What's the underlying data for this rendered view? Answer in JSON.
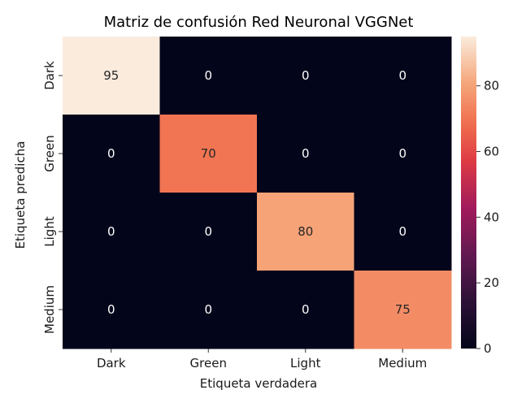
{
  "chart_data": {
    "type": "heatmap",
    "title": "Matriz de confusión Red Neuronal VGGNet",
    "xlabel": "Etiqueta verdadera",
    "ylabel": "Etiqueta predicha",
    "x_categories": [
      "Dark",
      "Green",
      "Light",
      "Medium"
    ],
    "y_categories": [
      "Dark",
      "Green",
      "Light",
      "Medium"
    ],
    "matrix": [
      [
        95,
        0,
        0,
        0
      ],
      [
        0,
        70,
        0,
        0
      ],
      [
        0,
        0,
        80,
        0
      ],
      [
        0,
        0,
        0,
        75
      ]
    ],
    "colorbar": {
      "colormap": "rocket",
      "vmin": 0,
      "vmax": 95,
      "ticks": [
        0,
        20,
        40,
        60,
        80
      ]
    }
  }
}
